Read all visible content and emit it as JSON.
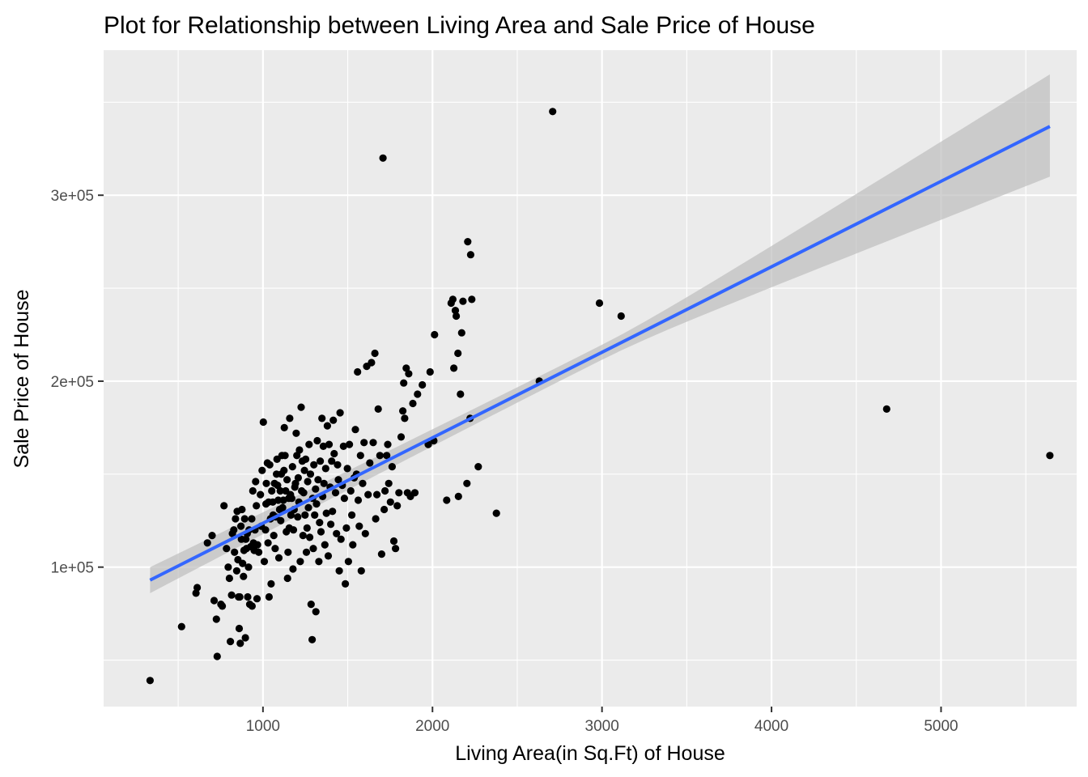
{
  "chart_data": {
    "type": "scatter",
    "title": "Plot for Relationship between Living Area and Sale Price of House",
    "xlabel": "Living Area(in Sq.Ft) of House",
    "ylabel": "Sale Price of House",
    "xlim": [
      60,
      5800
    ],
    "ylim": [
      25000,
      378000
    ],
    "x_ticks": [
      1000,
      2000,
      3000,
      4000,
      5000
    ],
    "x_tick_labels": [
      "1000",
      "2000",
      "3000",
      "4000",
      "5000"
    ],
    "y_ticks": [
      100000,
      200000,
      300000
    ],
    "y_tick_labels": [
      "1e+05",
      "2e+05",
      "3e+05"
    ],
    "grid": true,
    "colors": {
      "panel": "#ebebeb",
      "grid_major": "#ffffff",
      "points": "#000000",
      "fit_line": "#3366ff",
      "confidence_band": "#bebebe"
    },
    "fit": {
      "type": "linear",
      "x_range": [
        334,
        5642
      ],
      "y_start": 93000,
      "y_end": 337000,
      "band_lower": [
        86000,
        310000
      ],
      "band_upper": [
        100000,
        365000
      ]
    },
    "points": [
      [
        334,
        39000
      ],
      [
        520,
        68000
      ],
      [
        605,
        86000
      ],
      [
        612,
        89000
      ],
      [
        672,
        113000
      ],
      [
        700,
        117000
      ],
      [
        712,
        82000
      ],
      [
        725,
        72000
      ],
      [
        730,
        52000
      ],
      [
        752,
        80000
      ],
      [
        760,
        79000
      ],
      [
        770,
        133000
      ],
      [
        785,
        110000
      ],
      [
        795,
        100000
      ],
      [
        802,
        94000
      ],
      [
        808,
        60000
      ],
      [
        815,
        85000
      ],
      [
        820,
        118000
      ],
      [
        828,
        120000
      ],
      [
        832,
        108000
      ],
      [
        838,
        126000
      ],
      [
        845,
        98000
      ],
      [
        848,
        130000
      ],
      [
        852,
        104000
      ],
      [
        856,
        84000
      ],
      [
        860,
        67000
      ],
      [
        863,
        84000
      ],
      [
        866,
        59000
      ],
      [
        870,
        122000
      ],
      [
        873,
        115000
      ],
      [
        876,
        131000
      ],
      [
        880,
        102000
      ],
      [
        885,
        95000
      ],
      [
        888,
        109000
      ],
      [
        892,
        126000
      ],
      [
        896,
        62000
      ],
      [
        899,
        115000
      ],
      [
        903,
        110000
      ],
      [
        907,
        118000
      ],
      [
        910,
        84000
      ],
      [
        915,
        100000
      ],
      [
        918,
        120000
      ],
      [
        922,
        80000
      ],
      [
        928,
        111000
      ],
      [
        934,
        126000
      ],
      [
        936,
        79000
      ],
      [
        940,
        141000
      ],
      [
        944,
        113000
      ],
      [
        948,
        109000
      ],
      [
        953,
        120000
      ],
      [
        957,
        146000
      ],
      [
        961,
        133000
      ],
      [
        965,
        83000
      ],
      [
        968,
        112000
      ],
      [
        975,
        108000
      ],
      [
        985,
        139000
      ],
      [
        990,
        122000
      ],
      [
        995,
        152000
      ],
      [
        1002,
        178000
      ],
      [
        1008,
        103000
      ],
      [
        1015,
        120000
      ],
      [
        1018,
        134000
      ],
      [
        1020,
        145000
      ],
      [
        1026,
        156000
      ],
      [
        1030,
        113000
      ],
      [
        1033,
        135000
      ],
      [
        1036,
        84000
      ],
      [
        1040,
        155000
      ],
      [
        1044,
        126000
      ],
      [
        1048,
        91000
      ],
      [
        1052,
        141000
      ],
      [
        1058,
        135000
      ],
      [
        1060,
        128000
      ],
      [
        1064,
        117000
      ],
      [
        1068,
        145000
      ],
      [
        1072,
        110000
      ],
      [
        1076,
        127000
      ],
      [
        1080,
        150000
      ],
      [
        1083,
        158000
      ],
      [
        1086,
        144000
      ],
      [
        1090,
        136000
      ],
      [
        1094,
        105000
      ],
      [
        1098,
        131000
      ],
      [
        1102,
        141000
      ],
      [
        1105,
        125000
      ],
      [
        1108,
        150000
      ],
      [
        1112,
        160000
      ],
      [
        1116,
        132000
      ],
      [
        1120,
        136000
      ],
      [
        1124,
        152000
      ],
      [
        1126,
        175000
      ],
      [
        1130,
        160000
      ],
      [
        1134,
        141000
      ],
      [
        1138,
        119000
      ],
      [
        1142,
        147000
      ],
      [
        1145,
        94000
      ],
      [
        1148,
        108000
      ],
      [
        1152,
        137000
      ],
      [
        1155,
        121000
      ],
      [
        1158,
        180000
      ],
      [
        1162,
        139000
      ],
      [
        1165,
        128000
      ],
      [
        1170,
        137000
      ],
      [
        1174,
        154000
      ],
      [
        1177,
        99000
      ],
      [
        1180,
        120000
      ],
      [
        1184,
        131000
      ],
      [
        1188,
        143000
      ],
      [
        1192,
        145000
      ],
      [
        1196,
        172000
      ],
      [
        1200,
        160000
      ],
      [
        1205,
        127000
      ],
      [
        1208,
        148000
      ],
      [
        1212,
        135000
      ],
      [
        1215,
        163000
      ],
      [
        1220,
        103000
      ],
      [
        1225,
        186000
      ],
      [
        1228,
        141000
      ],
      [
        1232,
        157000
      ],
      [
        1236,
        117000
      ],
      [
        1240,
        140000
      ],
      [
        1245,
        152000
      ],
      [
        1248,
        128000
      ],
      [
        1252,
        158000
      ],
      [
        1256,
        108000
      ],
      [
        1260,
        121000
      ],
      [
        1264,
        146000
      ],
      [
        1268,
        132000
      ],
      [
        1272,
        166000
      ],
      [
        1276,
        116000
      ],
      [
        1280,
        150000
      ],
      [
        1284,
        80000
      ],
      [
        1290,
        61000
      ],
      [
        1293,
        137000
      ],
      [
        1297,
        110000
      ],
      [
        1300,
        155000
      ],
      [
        1305,
        128000
      ],
      [
        1310,
        142000
      ],
      [
        1312,
        76000
      ],
      [
        1316,
        134000
      ],
      [
        1320,
        168000
      ],
      [
        1325,
        147000
      ],
      [
        1330,
        103000
      ],
      [
        1334,
        124000
      ],
      [
        1338,
        157000
      ],
      [
        1342,
        119000
      ],
      [
        1348,
        180000
      ],
      [
        1352,
        138000
      ],
      [
        1356,
        165000
      ],
      [
        1360,
        145000
      ],
      [
        1365,
        112000
      ],
      [
        1370,
        153000
      ],
      [
        1374,
        129000
      ],
      [
        1380,
        176000
      ],
      [
        1385,
        106000
      ],
      [
        1390,
        166000
      ],
      [
        1396,
        143000
      ],
      [
        1400,
        123000
      ],
      [
        1405,
        157000
      ],
      [
        1410,
        130000
      ],
      [
        1415,
        179000
      ],
      [
        1420,
        161000
      ],
      [
        1428,
        140000
      ],
      [
        1434,
        118000
      ],
      [
        1440,
        155000
      ],
      [
        1445,
        147000
      ],
      [
        1450,
        98000
      ],
      [
        1455,
        183000
      ],
      [
        1460,
        115000
      ],
      [
        1468,
        144000
      ],
      [
        1475,
        165000
      ],
      [
        1480,
        137000
      ],
      [
        1486,
        91000
      ],
      [
        1492,
        121000
      ],
      [
        1498,
        153000
      ],
      [
        1504,
        103000
      ],
      [
        1510,
        166000
      ],
      [
        1518,
        141000
      ],
      [
        1524,
        128000
      ],
      [
        1530,
        112000
      ],
      [
        1538,
        148000
      ],
      [
        1545,
        174000
      ],
      [
        1552,
        150000
      ],
      [
        1558,
        205000
      ],
      [
        1562,
        136000
      ],
      [
        1568,
        122000
      ],
      [
        1575,
        160000
      ],
      [
        1580,
        98000
      ],
      [
        1588,
        145000
      ],
      [
        1596,
        167000
      ],
      [
        1604,
        118000
      ],
      [
        1612,
        208000
      ],
      [
        1620,
        139000
      ],
      [
        1630,
        156000
      ],
      [
        1640,
        210000
      ],
      [
        1650,
        167000
      ],
      [
        1660,
        215000
      ],
      [
        1665,
        126000
      ],
      [
        1672,
        139000
      ],
      [
        1680,
        185000
      ],
      [
        1690,
        160000
      ],
      [
        1700,
        107000
      ],
      [
        1708,
        320000
      ],
      [
        1715,
        131000
      ],
      [
        1720,
        141000
      ],
      [
        1730,
        160000
      ],
      [
        1736,
        166000
      ],
      [
        1742,
        145000
      ],
      [
        1752,
        135000
      ],
      [
        1762,
        154000
      ],
      [
        1772,
        114000
      ],
      [
        1782,
        110000
      ],
      [
        1792,
        133000
      ],
      [
        1802,
        140000
      ],
      [
        1815,
        170000
      ],
      [
        1825,
        184000
      ],
      [
        1830,
        199000
      ],
      [
        1836,
        180000
      ],
      [
        1845,
        207000
      ],
      [
        1852,
        140000
      ],
      [
        1860,
        204000
      ],
      [
        1870,
        138000
      ],
      [
        1884,
        188000
      ],
      [
        1896,
        140000
      ],
      [
        1912,
        193000
      ],
      [
        1940,
        198000
      ],
      [
        1975,
        166000
      ],
      [
        1986,
        205000
      ],
      [
        2008,
        168000
      ],
      [
        2012,
        225000
      ],
      [
        2084,
        136000
      ],
      [
        2110,
        242000
      ],
      [
        2120,
        244000
      ],
      [
        2126,
        207000
      ],
      [
        2135,
        238000
      ],
      [
        2140,
        235000
      ],
      [
        2150,
        215000
      ],
      [
        2153,
        138000
      ],
      [
        2165,
        193000
      ],
      [
        2172,
        226000
      ],
      [
        2180,
        243000
      ],
      [
        2203,
        145000
      ],
      [
        2208,
        275000
      ],
      [
        2222,
        180000
      ],
      [
        2225,
        268000
      ],
      [
        2232,
        244000
      ],
      [
        2270,
        154000
      ],
      [
        2377,
        129000
      ],
      [
        2630,
        200000
      ],
      [
        2709,
        345000
      ],
      [
        2985,
        242000
      ],
      [
        3113,
        235000
      ],
      [
        4679,
        185000
      ],
      [
        5642,
        160000
      ]
    ]
  }
}
